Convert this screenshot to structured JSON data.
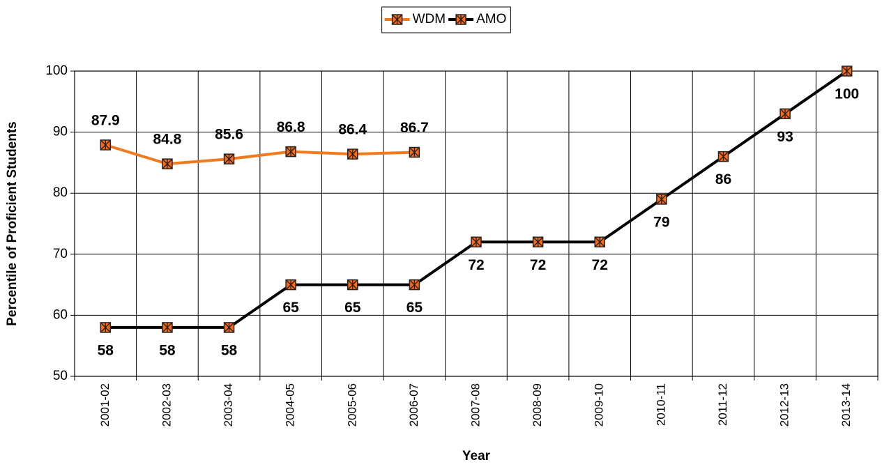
{
  "chart_data": {
    "type": "line",
    "x_label": "Year",
    "y_label": "Percentile of Proficient Students",
    "categories": [
      "2001-02",
      "2002-03",
      "2003-04",
      "2004-05",
      "2005-06",
      "2006-07",
      "2007-08",
      "2008-09",
      "2009-10",
      "2010-11",
      "2011-12",
      "2012-13",
      "2013-14"
    ],
    "series": [
      {
        "name": "WDM",
        "color": "#f07a1e",
        "values": [
          87.9,
          84.8,
          85.6,
          86.8,
          86.4,
          86.7,
          null,
          null,
          null,
          null,
          null,
          null,
          null
        ]
      },
      {
        "name": "AMO",
        "color": "#000000",
        "values": [
          58,
          58,
          58,
          65,
          65,
          65,
          72,
          72,
          72,
          79,
          86,
          93,
          100
        ]
      }
    ],
    "marker_color": "#ff6a13",
    "ylim": [
      50,
      100
    ],
    "yticks": [
      50,
      60,
      70,
      80,
      90,
      100
    ],
    "grid": true,
    "legend": "top"
  }
}
